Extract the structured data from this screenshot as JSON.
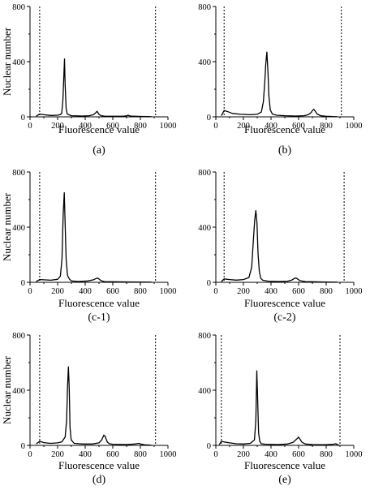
{
  "figure": {
    "background": "#ffffff",
    "line_color": "#000000"
  },
  "chart_data": [
    {
      "id": "a",
      "caption": "(a)",
      "type": "line",
      "xlabel": "Fluorescence value",
      "ylabel": "Nuclear number",
      "xlim": [
        0,
        1000
      ],
      "ylim": [
        0,
        800
      ],
      "xticks": [
        0,
        200,
        400,
        600,
        800,
        1000
      ],
      "yticks": [
        0,
        400,
        800
      ],
      "gates": [
        70,
        910
      ],
      "series": [
        {
          "x": [
            45,
            70,
            100,
            150,
            200,
            220,
            230,
            238,
            245,
            250,
            255,
            262,
            270,
            300,
            380,
            430,
            460,
            475,
            485,
            492,
            500,
            515,
            540,
            600,
            680,
            700,
            710,
            720,
            730,
            760,
            800,
            850,
            880
          ],
          "values": [
            5,
            20,
            15,
            10,
            12,
            16,
            28,
            120,
            300,
            420,
            230,
            60,
            20,
            8,
            6,
            8,
            15,
            28,
            40,
            32,
            18,
            8,
            5,
            4,
            5,
            7,
            12,
            8,
            5,
            4,
            3,
            2,
            1
          ]
        }
      ]
    },
    {
      "id": "b",
      "caption": "(b)",
      "type": "line",
      "xlabel": "Fluorescence value",
      "ylabel": "",
      "xlim": [
        0,
        1000
      ],
      "ylim": [
        0,
        800
      ],
      "xticks": [
        0,
        200,
        400,
        600,
        800,
        1000
      ],
      "yticks": [
        0,
        400,
        800
      ],
      "gates": [
        60,
        910
      ],
      "series": [
        {
          "x": [
            40,
            60,
            80,
            120,
            180,
            250,
            300,
            330,
            345,
            355,
            362,
            370,
            378,
            385,
            395,
            410,
            440,
            500,
            580,
            640,
            670,
            690,
            700,
            710,
            720,
            735,
            760,
            800,
            850,
            880
          ],
          "values": [
            8,
            45,
            40,
            25,
            18,
            15,
            18,
            35,
            110,
            260,
            380,
            470,
            320,
            150,
            50,
            20,
            12,
            8,
            6,
            8,
            15,
            30,
            45,
            55,
            42,
            20,
            8,
            4,
            2,
            1
          ]
        }
      ]
    },
    {
      "id": "c-1",
      "caption": "(c-1)",
      "type": "line",
      "xlabel": "Fluorescence value",
      "ylabel": "Nuclear number",
      "xlim": [
        0,
        1000
      ],
      "ylim": [
        0,
        800
      ],
      "xticks": [
        0,
        200,
        400,
        600,
        800,
        1000
      ],
      "yticks": [
        0,
        400,
        800
      ],
      "gates": [
        70,
        910
      ],
      "series": [
        {
          "x": [
            45,
            70,
            100,
            150,
            200,
            220,
            232,
            240,
            248,
            255,
            262,
            272,
            285,
            300,
            350,
            420,
            460,
            480,
            492,
            500,
            515,
            540,
            600,
            700,
            800,
            880
          ],
          "values": [
            5,
            20,
            18,
            15,
            22,
            45,
            170,
            480,
            650,
            420,
            170,
            50,
            25,
            10,
            6,
            10,
            18,
            28,
            30,
            24,
            12,
            5,
            4,
            3,
            2,
            1
          ]
        }
      ]
    },
    {
      "id": "c-2",
      "caption": "(c-2)",
      "type": "line",
      "xlabel": "Fluorescence value",
      "ylabel": "",
      "xlim": [
        0,
        1000
      ],
      "ylim": [
        0,
        800
      ],
      "xticks": [
        0,
        200,
        400,
        600,
        800,
        1000
      ],
      "yticks": [
        0,
        400,
        800
      ],
      "gates": [
        60,
        930
      ],
      "series": [
        {
          "x": [
            40,
            60,
            100,
            150,
            200,
            240,
            260,
            272,
            282,
            290,
            298,
            306,
            315,
            325,
            340,
            380,
            450,
            520,
            550,
            570,
            580,
            592,
            610,
            650,
            700,
            800,
            880
          ],
          "values": [
            5,
            25,
            20,
            16,
            20,
            35,
            110,
            300,
            450,
            520,
            430,
            210,
            80,
            30,
            15,
            8,
            6,
            8,
            16,
            28,
            32,
            25,
            12,
            5,
            4,
            2,
            1
          ]
        }
      ]
    },
    {
      "id": "d",
      "caption": "(d)",
      "type": "line",
      "xlabel": "Fluorescence value",
      "ylabel": "Nuclear number",
      "xlim": [
        0,
        1000
      ],
      "ylim": [
        0,
        800
      ],
      "xticks": [
        0,
        200,
        400,
        600,
        800,
        1000
      ],
      "yticks": [
        0,
        400,
        800
      ],
      "gates": [
        70,
        910
      ],
      "series": [
        {
          "x": [
            45,
            70,
            100,
            150,
            200,
            230,
            255,
            265,
            272,
            278,
            284,
            290,
            298,
            320,
            380,
            450,
            500,
            520,
            535,
            545,
            550,
            560,
            575,
            600,
            700,
            760,
            790,
            800,
            830,
            880
          ],
          "values": [
            10,
            30,
            20,
            15,
            18,
            25,
            60,
            180,
            420,
            570,
            420,
            130,
            40,
            15,
            10,
            10,
            18,
            40,
            75,
            65,
            50,
            25,
            12,
            8,
            6,
            10,
            15,
            10,
            4,
            1
          ]
        }
      ]
    },
    {
      "id": "e",
      "caption": "(e)",
      "type": "line",
      "xlabel": "Fluorescence value",
      "ylabel": "",
      "xlim": [
        0,
        1000
      ],
      "ylim": [
        0,
        800
      ],
      "xticks": [
        0,
        200,
        400,
        600,
        800,
        1000
      ],
      "yticks": [
        0,
        400,
        800
      ],
      "gates": [
        40,
        900
      ],
      "series": [
        {
          "x": [
            25,
            40,
            60,
            100,
            150,
            200,
            250,
            280,
            290,
            297,
            303,
            310,
            318,
            330,
            360,
            450,
            520,
            560,
            585,
            600,
            610,
            625,
            650,
            700,
            800,
            850,
            870,
            890
          ],
          "values": [
            5,
            30,
            25,
            18,
            12,
            10,
            15,
            40,
            180,
            540,
            340,
            90,
            30,
            12,
            8,
            6,
            10,
            22,
            45,
            60,
            45,
            22,
            10,
            6,
            5,
            8,
            12,
            2
          ]
        }
      ]
    }
  ]
}
